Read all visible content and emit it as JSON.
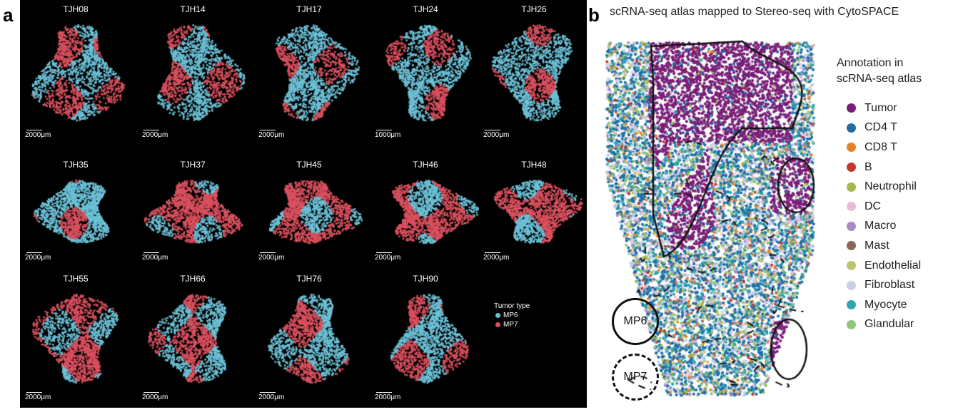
{
  "panel_a": {
    "label": "a",
    "samples": [
      {
        "name": "TJH08",
        "scale": "2000μm"
      },
      {
        "name": "TJH14",
        "scale": "2000μm"
      },
      {
        "name": "TJH17",
        "scale": "2000μm"
      },
      {
        "name": "TJH24",
        "scale": "1000μm"
      },
      {
        "name": "TJH26",
        "scale": "2000μm"
      },
      {
        "name": "TJH35",
        "scale": "2000μm"
      },
      {
        "name": "TJH37",
        "scale": "2000μm"
      },
      {
        "name": "TJH45",
        "scale": "2000μm"
      },
      {
        "name": "TJH46",
        "scale": "2000μm"
      },
      {
        "name": "TJH48",
        "scale": "2000μm"
      },
      {
        "name": "TJH55",
        "scale": "2000μm"
      },
      {
        "name": "TJH66",
        "scale": "2000μm"
      },
      {
        "name": "TJH76",
        "scale": "2000μm"
      },
      {
        "name": "TJH90",
        "scale": "2000μm"
      }
    ],
    "legend": {
      "title": "Tumor type",
      "items": [
        {
          "label": "MP6",
          "color": "#6cc0d6"
        },
        {
          "label": "MP7",
          "color": "#d9505e"
        }
      ]
    }
  },
  "panel_b": {
    "label": "b",
    "title": "scRNA-seq atlas mapped to Stereo-seq with CytoSPACE",
    "legend": {
      "title_line1": "Annotation in",
      "title_line2": "scRNA-seq atlas",
      "items": [
        {
          "label": "Tumor",
          "color": "#7a1f78"
        },
        {
          "label": "CD4 T",
          "color": "#1f6ea6"
        },
        {
          "label": "CD8 T",
          "color": "#e8802a"
        },
        {
          "label": "B",
          "color": "#c8352c"
        },
        {
          "label": "Neutrophil",
          "color": "#a3b84c"
        },
        {
          "label": "DC",
          "color": "#e8bcd8"
        },
        {
          "label": "Macro",
          "color": "#a888c6"
        },
        {
          "label": "Mast",
          "color": "#8c6656"
        },
        {
          "label": "Endothelial",
          "color": "#bcc46c"
        },
        {
          "label": "Fibroblast",
          "color": "#c6d0e6"
        },
        {
          "label": "Myocyte",
          "color": "#2ba6b2"
        },
        {
          "label": "Glandular",
          "color": "#8ec67c"
        }
      ]
    },
    "region_key": [
      {
        "label": "MP6",
        "line": "solid"
      },
      {
        "label": "MP7",
        "line": "dashed"
      }
    ]
  }
}
